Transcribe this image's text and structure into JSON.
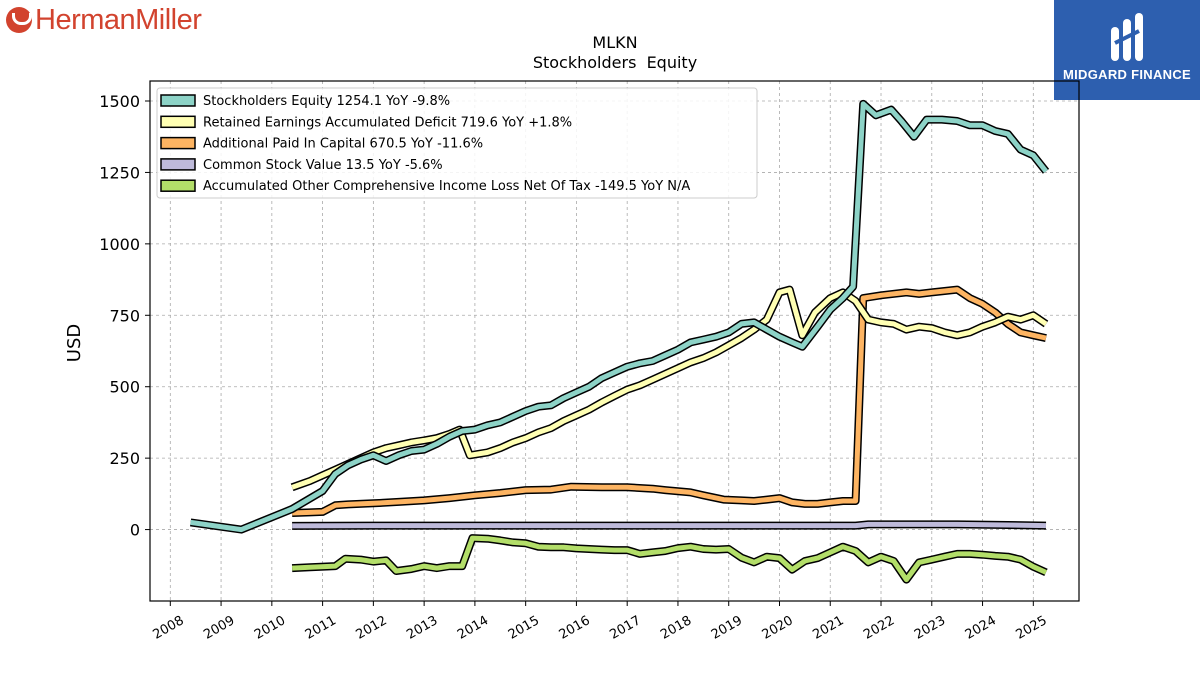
{
  "brand_left": "HermanMiller",
  "brand_right": "MIDGARD FINANCE",
  "chart_data": {
    "type": "line",
    "title": "MLKN",
    "subtitle": "Stockholders  Equity",
    "ylabel": "USD",
    "xlabel": "",
    "xlim": [
      2007.6,
      2025.9
    ],
    "ylim": [
      -250,
      1570
    ],
    "yticks": [
      0,
      250,
      500,
      750,
      1000,
      1250,
      1500
    ],
    "xticks": [
      2008,
      2009,
      2010,
      2011,
      2012,
      2013,
      2014,
      2015,
      2016,
      2017,
      2018,
      2019,
      2020,
      2021,
      2022,
      2023,
      2024,
      2025
    ],
    "grid": true,
    "legend_position": "top-left",
    "series": [
      {
        "name": "Stockholders Equity  1254.1 YoY -9.8%",
        "color": "#8dd3c7",
        "points": [
          [
            2008.4,
            25
          ],
          [
            2009.4,
            0
          ],
          [
            2010.4,
            72
          ],
          [
            2011.0,
            135
          ],
          [
            2011.25,
            195
          ],
          [
            2011.5,
            225
          ],
          [
            2011.75,
            245
          ],
          [
            2012.0,
            260
          ],
          [
            2012.25,
            240
          ],
          [
            2012.5,
            260
          ],
          [
            2012.75,
            275
          ],
          [
            2013.0,
            280
          ],
          [
            2013.25,
            300
          ],
          [
            2013.5,
            325
          ],
          [
            2013.75,
            345
          ],
          [
            2014.0,
            350
          ],
          [
            2014.25,
            365
          ],
          [
            2014.5,
            375
          ],
          [
            2014.75,
            395
          ],
          [
            2015.0,
            415
          ],
          [
            2015.25,
            430
          ],
          [
            2015.5,
            435
          ],
          [
            2015.75,
            460
          ],
          [
            2016.0,
            480
          ],
          [
            2016.25,
            500
          ],
          [
            2016.5,
            530
          ],
          [
            2016.75,
            550
          ],
          [
            2017.0,
            570
          ],
          [
            2017.25,
            582
          ],
          [
            2017.5,
            590
          ],
          [
            2017.75,
            610
          ],
          [
            2018.0,
            630
          ],
          [
            2018.25,
            655
          ],
          [
            2018.5,
            665
          ],
          [
            2018.75,
            675
          ],
          [
            2019.0,
            690
          ],
          [
            2019.25,
            720
          ],
          [
            2019.5,
            725
          ],
          [
            2019.75,
            700
          ],
          [
            2020.0,
            675
          ],
          [
            2020.25,
            655
          ],
          [
            2020.45,
            640
          ],
          [
            2020.75,
            710
          ],
          [
            2021.0,
            770
          ],
          [
            2021.25,
            810
          ],
          [
            2021.45,
            850
          ],
          [
            2021.65,
            1490
          ],
          [
            2021.9,
            1450
          ],
          [
            2022.2,
            1470
          ],
          [
            2022.4,
            1430
          ],
          [
            2022.65,
            1375
          ],
          [
            2022.9,
            1435
          ],
          [
            2023.2,
            1435
          ],
          [
            2023.5,
            1430
          ],
          [
            2023.75,
            1415
          ],
          [
            2024.0,
            1415
          ],
          [
            2024.25,
            1395
          ],
          [
            2024.5,
            1385
          ],
          [
            2024.75,
            1330
          ],
          [
            2025.0,
            1310
          ],
          [
            2025.25,
            1254
          ]
        ]
      },
      {
        "name": "Retained Earnings Accumulated Deficit  719.6 YoY +1.8%",
        "color": "#ffffb3",
        "points": [
          [
            2010.4,
            148
          ],
          [
            2010.75,
            170
          ],
          [
            2011.0,
            190
          ],
          [
            2011.25,
            210
          ],
          [
            2011.5,
            230
          ],
          [
            2011.75,
            250
          ],
          [
            2012.0,
            270
          ],
          [
            2012.25,
            285
          ],
          [
            2012.5,
            295
          ],
          [
            2012.75,
            305
          ],
          [
            2013.0,
            312
          ],
          [
            2013.25,
            320
          ],
          [
            2013.5,
            335
          ],
          [
            2013.7,
            350
          ],
          [
            2013.9,
            260
          ],
          [
            2014.25,
            270
          ],
          [
            2014.5,
            285
          ],
          [
            2014.75,
            305
          ],
          [
            2015.0,
            320
          ],
          [
            2015.25,
            340
          ],
          [
            2015.5,
            355
          ],
          [
            2015.75,
            380
          ],
          [
            2016.0,
            400
          ],
          [
            2016.25,
            420
          ],
          [
            2016.5,
            445
          ],
          [
            2016.75,
            468
          ],
          [
            2017.0,
            490
          ],
          [
            2017.25,
            505
          ],
          [
            2017.5,
            525
          ],
          [
            2017.75,
            545
          ],
          [
            2018.0,
            565
          ],
          [
            2018.25,
            585
          ],
          [
            2018.5,
            600
          ],
          [
            2018.75,
            620
          ],
          [
            2019.0,
            645
          ],
          [
            2019.25,
            670
          ],
          [
            2019.5,
            700
          ],
          [
            2019.75,
            735
          ],
          [
            2020.0,
            830
          ],
          [
            2020.2,
            840
          ],
          [
            2020.45,
            680
          ],
          [
            2020.7,
            760
          ],
          [
            2021.0,
            810
          ],
          [
            2021.25,
            830
          ],
          [
            2021.5,
            800
          ],
          [
            2021.75,
            735
          ],
          [
            2022.0,
            725
          ],
          [
            2022.25,
            720
          ],
          [
            2022.5,
            700
          ],
          [
            2022.75,
            710
          ],
          [
            2023.0,
            705
          ],
          [
            2023.25,
            690
          ],
          [
            2023.5,
            680
          ],
          [
            2023.75,
            690
          ],
          [
            2024.0,
            710
          ],
          [
            2024.25,
            725
          ],
          [
            2024.5,
            745
          ],
          [
            2024.75,
            735
          ],
          [
            2025.0,
            750
          ],
          [
            2025.25,
            720
          ]
        ]
      },
      {
        "name": "Additional Paid In Capital  670.5 YoY -11.6%",
        "color": "#fdb462",
        "points": [
          [
            2010.4,
            58
          ],
          [
            2010.75,
            60
          ],
          [
            2011.0,
            62
          ],
          [
            2011.25,
            85
          ],
          [
            2011.5,
            88
          ],
          [
            2012.0,
            92
          ],
          [
            2012.5,
            97
          ],
          [
            2013.0,
            102
          ],
          [
            2013.5,
            110
          ],
          [
            2014.0,
            120
          ],
          [
            2014.5,
            128
          ],
          [
            2015.0,
            138
          ],
          [
            2015.5,
            140
          ],
          [
            2015.9,
            150
          ],
          [
            2016.5,
            148
          ],
          [
            2017.0,
            148
          ],
          [
            2017.5,
            143
          ],
          [
            2017.75,
            138
          ],
          [
            2018.25,
            130
          ],
          [
            2018.5,
            120
          ],
          [
            2018.9,
            105
          ],
          [
            2019.25,
            102
          ],
          [
            2019.5,
            100
          ],
          [
            2019.75,
            105
          ],
          [
            2020.0,
            110
          ],
          [
            2020.25,
            95
          ],
          [
            2020.5,
            90
          ],
          [
            2020.75,
            90
          ],
          [
            2021.0,
            95
          ],
          [
            2021.25,
            100
          ],
          [
            2021.5,
            100
          ],
          [
            2021.65,
            810
          ],
          [
            2022.0,
            820
          ],
          [
            2022.5,
            830
          ],
          [
            2022.75,
            825
          ],
          [
            2023.0,
            830
          ],
          [
            2023.5,
            840
          ],
          [
            2023.75,
            810
          ],
          [
            2024.0,
            790
          ],
          [
            2024.25,
            760
          ],
          [
            2024.5,
            720
          ],
          [
            2024.75,
            690
          ],
          [
            2025.0,
            680
          ],
          [
            2025.25,
            670
          ]
        ]
      },
      {
        "name": "Common Stock Value  13.5 YoY -5.6%",
        "color": "#bebada",
        "points": [
          [
            2010.4,
            13
          ],
          [
            2012.0,
            14
          ],
          [
            2014.0,
            14
          ],
          [
            2016.0,
            14
          ],
          [
            2018.0,
            14
          ],
          [
            2020.0,
            14
          ],
          [
            2021.5,
            14
          ],
          [
            2021.75,
            18
          ],
          [
            2022.5,
            18
          ],
          [
            2023.5,
            18
          ],
          [
            2024.5,
            16
          ],
          [
            2025.25,
            14
          ]
        ]
      },
      {
        "name": "Accumulated Other Comprehensive Income Loss Net Of Tax  -149.5 YoY N/A",
        "color": "#b3de69",
        "points": [
          [
            2010.4,
            -135
          ],
          [
            2010.75,
            -132
          ],
          [
            2011.25,
            -128
          ],
          [
            2011.45,
            -102
          ],
          [
            2011.75,
            -105
          ],
          [
            2012.0,
            -112
          ],
          [
            2012.25,
            -108
          ],
          [
            2012.45,
            -145
          ],
          [
            2012.75,
            -138
          ],
          [
            2013.0,
            -128
          ],
          [
            2013.25,
            -135
          ],
          [
            2013.5,
            -128
          ],
          [
            2013.75,
            -128
          ],
          [
            2013.95,
            -30
          ],
          [
            2014.25,
            -32
          ],
          [
            2014.5,
            -38
          ],
          [
            2014.75,
            -45
          ],
          [
            2015.0,
            -48
          ],
          [
            2015.25,
            -60
          ],
          [
            2015.5,
            -62
          ],
          [
            2015.75,
            -62
          ],
          [
            2016.0,
            -66
          ],
          [
            2016.25,
            -68
          ],
          [
            2016.5,
            -70
          ],
          [
            2016.75,
            -72
          ],
          [
            2017.0,
            -72
          ],
          [
            2017.25,
            -85
          ],
          [
            2017.5,
            -80
          ],
          [
            2017.75,
            -75
          ],
          [
            2018.0,
            -65
          ],
          [
            2018.25,
            -60
          ],
          [
            2018.5,
            -68
          ],
          [
            2018.75,
            -70
          ],
          [
            2019.0,
            -68
          ],
          [
            2019.25,
            -98
          ],
          [
            2019.5,
            -115
          ],
          [
            2019.75,
            -95
          ],
          [
            2020.0,
            -100
          ],
          [
            2020.25,
            -140
          ],
          [
            2020.5,
            -110
          ],
          [
            2020.75,
            -100
          ],
          [
            2021.0,
            -80
          ],
          [
            2021.25,
            -60
          ],
          [
            2021.5,
            -75
          ],
          [
            2021.75,
            -115
          ],
          [
            2022.0,
            -95
          ],
          [
            2022.25,
            -110
          ],
          [
            2022.5,
            -175
          ],
          [
            2022.75,
            -115
          ],
          [
            2023.0,
            -105
          ],
          [
            2023.25,
            -95
          ],
          [
            2023.5,
            -85
          ],
          [
            2023.75,
            -85
          ],
          [
            2024.0,
            -88
          ],
          [
            2024.25,
            -92
          ],
          [
            2024.5,
            -95
          ],
          [
            2024.75,
            -105
          ],
          [
            2025.0,
            -130
          ],
          [
            2025.25,
            -150
          ]
        ]
      }
    ]
  }
}
